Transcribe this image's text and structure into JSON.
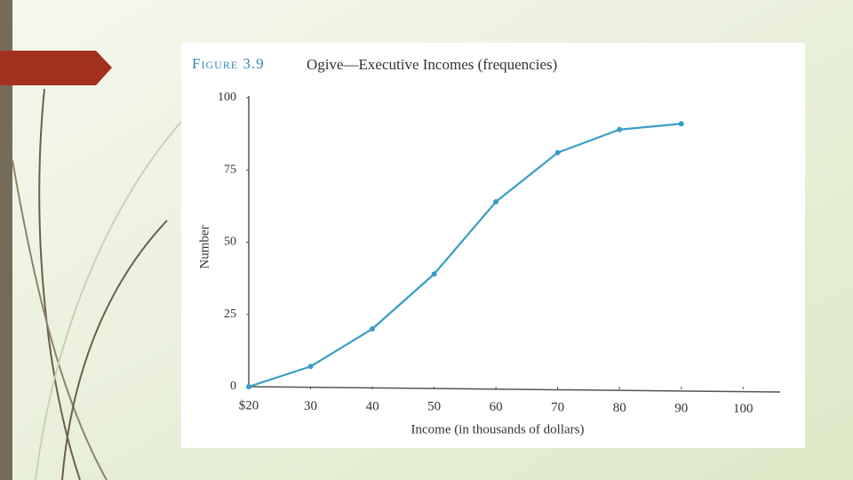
{
  "chart_data": {
    "type": "line",
    "figure_label": "Figure 3.9",
    "title": "Ogive—Executive Incomes (frequencies)",
    "x_label": "Income (in thousands of dollars)",
    "y_label": "Number",
    "x": [
      20,
      30,
      40,
      50,
      60,
      70,
      80,
      90
    ],
    "series": [
      {
        "color": "#3a9dc6",
        "values": [
          0,
          7,
          20,
          39,
          64,
          81,
          89,
          91
        ]
      }
    ],
    "xlim": [
      20,
      106
    ],
    "xticks": [
      {
        "value": 20,
        "label": "$20"
      },
      30,
      40,
      50,
      60,
      70,
      80,
      90,
      100
    ],
    "ylim": [
      0,
      100
    ],
    "yticks": [
      0,
      25,
      50,
      75,
      100
    ],
    "grid": false
  }
}
